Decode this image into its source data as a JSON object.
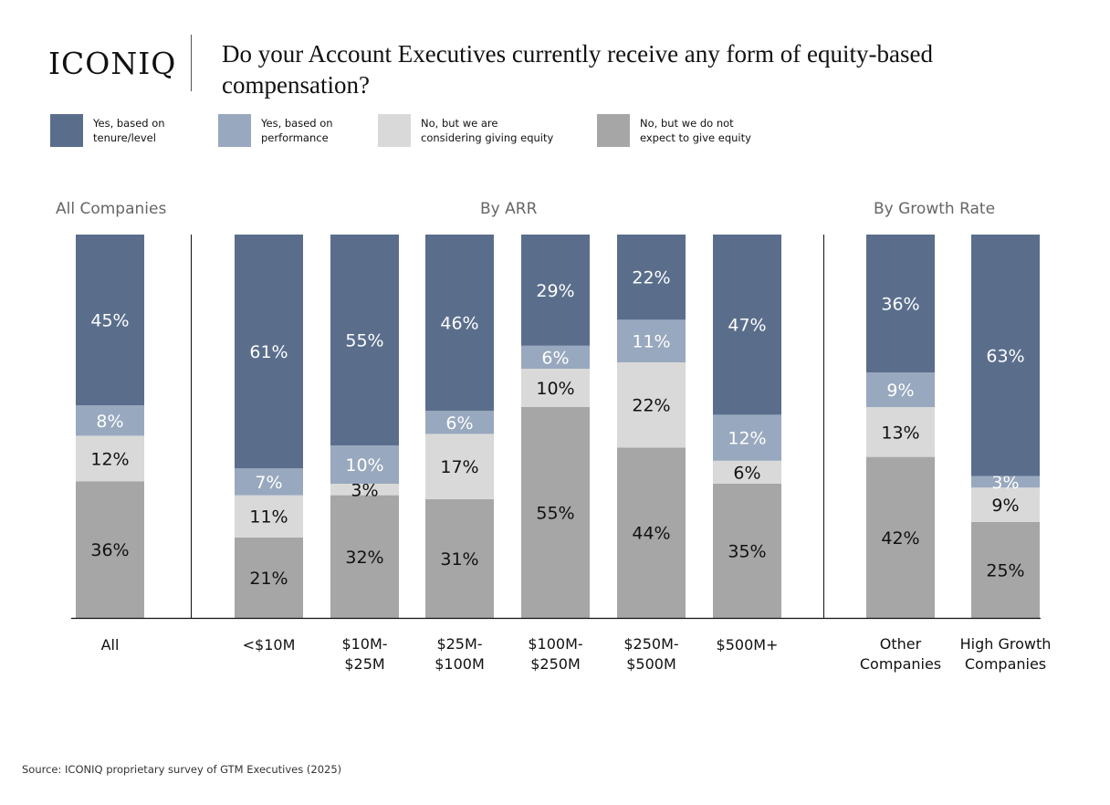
{
  "header": {
    "logo": "ICONIQ",
    "title": "Do your Account Executives currently receive any form of equity-based compensation?"
  },
  "legend": [
    {
      "label": "Yes, based on\ntenure/level",
      "color": "#5a6e8c"
    },
    {
      "label": "Yes, based on\nperformance",
      "color": "#98a8be"
    },
    {
      "label": "No, but we are\nconsidering giving equity",
      "color": "#d9d9d9"
    },
    {
      "label": "No, but we do not\nexpect to give equity",
      "color": "#a6a6a6"
    }
  ],
  "groups": [
    "All Companies",
    "By ARR",
    "By Growth Rate"
  ],
  "footer": {
    "source": "Source: ICONIQ proprietary survey of GTM Executives (2025)"
  },
  "chart_data": {
    "type": "bar",
    "stacked": true,
    "categories": [
      "All",
      "<$10M",
      "$10M-\n$25M",
      "$25M-\n$100M",
      "$100M-\n$250M",
      "$250M-\n$500M",
      "$500M+",
      "Other\nCompanies",
      "High Growth\nCompanies"
    ],
    "series": [
      {
        "name": "No, but we do not expect to give equity",
        "color": "#a6a6a6",
        "values": [
          36,
          21,
          32,
          31,
          55,
          44,
          35,
          42,
          25
        ]
      },
      {
        "name": "No, but we are considering giving equity",
        "color": "#d9d9d9",
        "values": [
          12,
          11,
          3,
          17,
          10,
          22,
          6,
          13,
          9
        ]
      },
      {
        "name": "Yes, based on performance",
        "color": "#98a8be",
        "values": [
          8,
          7,
          10,
          6,
          6,
          11,
          12,
          9,
          3
        ]
      },
      {
        "name": "Yes, based on tenure/level",
        "color": "#5a6e8c",
        "values": [
          45,
          61,
          55,
          46,
          29,
          22,
          47,
          36,
          63
        ]
      }
    ],
    "value_suffix": "%",
    "ylim": [
      0,
      100
    ]
  }
}
